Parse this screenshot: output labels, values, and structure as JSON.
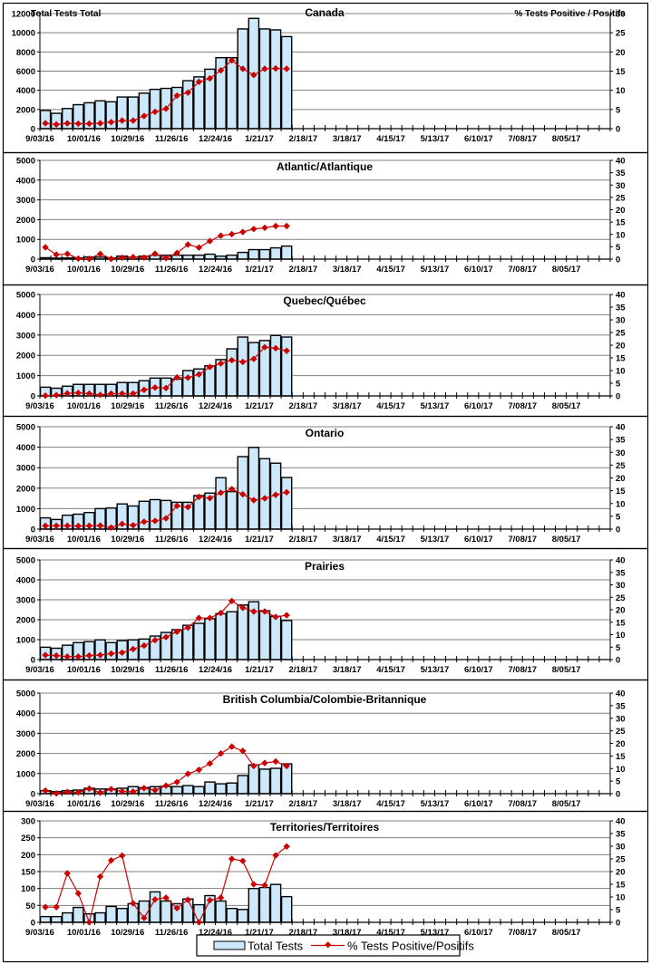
{
  "legend": {
    "bar_label": "Total Tests",
    "line_label": "% Tests Positive/Positifs"
  },
  "colors": {
    "bar_fill": "#cce8fa",
    "bar_stroke": "#000000",
    "line": "#cc0000",
    "grid": "#808080"
  },
  "chart_data": [
    {
      "type": "bar",
      "title": "Canada",
      "ylabel_left": "Total Tests Total",
      "ylabel_right": "% Tests Positive / Positifs",
      "xlabel": "",
      "weeks_total": 52,
      "x_tick_labels": [
        "9/03/16",
        "10/01/16",
        "10/29/16",
        "11/26/16",
        "12/24/16",
        "1/21/17",
        "2/18/17",
        "3/18/17",
        "4/15/17",
        "5/13/17",
        "6/10/17",
        "7/08/17",
        "8/05/17"
      ],
      "ylim_left": [
        0,
        12000
      ],
      "yticks_left": [
        0,
        2000,
        4000,
        6000,
        8000,
        10000,
        12000
      ],
      "ylim_right": [
        0,
        30
      ],
      "yticks_right": [
        0,
        5,
        10,
        15,
        20,
        25,
        30
      ],
      "grid": true,
      "series": [
        {
          "name": "Total Tests",
          "type": "bar",
          "values": [
            1900,
            1600,
            2100,
            2500,
            2700,
            2900,
            2800,
            3300,
            3300,
            3700,
            4100,
            4200,
            4300,
            5000,
            5400,
            6200,
            7400,
            7400,
            10400,
            11500,
            10400,
            10300,
            9600
          ]
        },
        {
          "name": "% Tests Positive/Positifs",
          "type": "line",
          "axis": "right",
          "values": [
            1.4,
            1.1,
            1.4,
            1.3,
            1.3,
            1.4,
            1.7,
            2.1,
            2.1,
            3.3,
            4.4,
            5.2,
            8.6,
            9.4,
            12.2,
            13.1,
            15.2,
            17.8,
            15.6,
            14.0,
            15.6,
            15.7,
            15.6
          ]
        }
      ]
    },
    {
      "type": "bar",
      "title": "Atlantic/Atlantique",
      "weeks_total": 52,
      "x_tick_labels": [
        "9/03/16",
        "10/01/16",
        "10/29/16",
        "11/26/16",
        "12/24/16",
        "1/21/17",
        "2/18/17",
        "3/18/17",
        "4/15/17",
        "5/13/17",
        "6/10/17",
        "7/08/17",
        "8/05/17"
      ],
      "ylim_left": [
        0,
        5000
      ],
      "yticks_left": [
        0,
        1000,
        2000,
        3000,
        4000,
        5000
      ],
      "ylim_right": [
        0,
        40
      ],
      "yticks_right": [
        0,
        5,
        10,
        15,
        20,
        25,
        30,
        35,
        40
      ],
      "grid": true,
      "series": [
        {
          "name": "Total Tests",
          "type": "bar",
          "values": [
            70,
            50,
            60,
            60,
            110,
            100,
            60,
            150,
            100,
            150,
            200,
            200,
            200,
            200,
            200,
            250,
            150,
            200,
            340,
            480,
            480,
            570,
            660
          ]
        },
        {
          "name": "% Tests Positive/Positifs",
          "type": "line",
          "axis": "right",
          "values": [
            4.8,
            1.8,
            2.1,
            0.2,
            0.1,
            2.1,
            0.1,
            0.6,
            0.8,
            0.6,
            2.2,
            0.4,
            2.5,
            5.9,
            4.7,
            7.3,
            9.5,
            10.1,
            11.0,
            12.2,
            12.7,
            13.4,
            13.4
          ]
        }
      ]
    },
    {
      "type": "bar",
      "title": "Quebec/Québec",
      "weeks_total": 52,
      "x_tick_labels": [
        "9/03/16",
        "10/01/16",
        "10/29/16",
        "11/26/16",
        "12/24/16",
        "1/21/17",
        "2/18/17",
        "3/18/17",
        "4/15/17",
        "5/13/17",
        "6/10/17",
        "7/08/17",
        "8/05/17"
      ],
      "ylim_left": [
        0,
        5000
      ],
      "yticks_left": [
        0,
        1000,
        2000,
        3000,
        4000,
        5000
      ],
      "ylim_right": [
        0,
        40
      ],
      "yticks_right": [
        0,
        5,
        10,
        15,
        20,
        25,
        30,
        35,
        40
      ],
      "grid": true,
      "series": [
        {
          "name": "Total Tests",
          "type": "bar",
          "values": [
            430,
            380,
            480,
            570,
            570,
            570,
            570,
            660,
            660,
            750,
            880,
            880,
            830,
            1250,
            1330,
            1480,
            1790,
            2320,
            2900,
            2630,
            2730,
            2980,
            2900
          ]
        },
        {
          "name": "% Tests Positive/Positifs",
          "type": "line",
          "axis": "right",
          "values": [
            0.1,
            0.3,
            1.0,
            1.2,
            0.9,
            0.4,
            0.9,
            0.9,
            0.9,
            2.4,
            3.3,
            3.1,
            7.3,
            7.2,
            8.5,
            11.4,
            12.8,
            14.1,
            13.4,
            14.6,
            19.2,
            18.8,
            17.8
          ]
        }
      ]
    },
    {
      "type": "bar",
      "title": "Ontario",
      "weeks_total": 52,
      "x_tick_labels": [
        "9/03/16",
        "10/01/16",
        "10/29/16",
        "11/26/16",
        "12/24/16",
        "1/21/17",
        "2/18/17",
        "3/18/17",
        "4/15/17",
        "5/13/17",
        "6/10/17",
        "7/08/17",
        "8/05/17"
      ],
      "ylim_left": [
        0,
        5000
      ],
      "yticks_left": [
        0,
        1000,
        2000,
        3000,
        4000,
        5000
      ],
      "ylim_right": [
        0,
        40
      ],
      "yticks_right": [
        0,
        5,
        10,
        15,
        20,
        25,
        30,
        35,
        40
      ],
      "grid": true,
      "series": [
        {
          "name": "Total Tests",
          "type": "bar",
          "values": [
            550,
            470,
            680,
            730,
            810,
            1000,
            1030,
            1230,
            1130,
            1360,
            1440,
            1400,
            1310,
            1310,
            1640,
            1760,
            2510,
            1830,
            3540,
            3990,
            3440,
            3220,
            2520
          ]
        },
        {
          "name": "% Tests Positive/Positifs",
          "type": "line",
          "axis": "right",
          "values": [
            1.3,
            1.3,
            1.3,
            1.2,
            1.3,
            1.4,
            0.6,
            2.0,
            1.5,
            2.9,
            3.2,
            4.2,
            9.1,
            8.6,
            12.6,
            12.1,
            14.2,
            15.6,
            13.6,
            11.3,
            12.0,
            13.4,
            14.4
          ]
        }
      ]
    },
    {
      "type": "bar",
      "title": "Prairies",
      "weeks_total": 52,
      "x_tick_labels": [
        "9/03/16",
        "10/01/16",
        "10/29/16",
        "11/26/16",
        "12/24/16",
        "1/21/17",
        "2/18/17",
        "3/18/17",
        "4/15/17",
        "5/13/17",
        "6/10/17",
        "7/08/17",
        "8/05/17"
      ],
      "ylim_left": [
        0,
        5000
      ],
      "yticks_left": [
        0,
        1000,
        2000,
        3000,
        4000,
        5000
      ],
      "ylim_right": [
        0,
        40
      ],
      "yticks_right": [
        0,
        5,
        10,
        15,
        20,
        25,
        30,
        35,
        40
      ],
      "grid": true,
      "series": [
        {
          "name": "Total Tests",
          "type": "bar",
          "values": [
            620,
            570,
            720,
            850,
            900,
            990,
            850,
            950,
            990,
            1030,
            1180,
            1360,
            1500,
            1720,
            1820,
            2050,
            2300,
            2400,
            2740,
            2900,
            2450,
            2170,
            1960
          ]
        },
        {
          "name": "% Tests Positive/Positifs",
          "type": "line",
          "axis": "right",
          "values": [
            1.8,
            1.6,
            1.2,
            1.2,
            1.6,
            1.8,
            2.4,
            2.8,
            4.2,
            5.6,
            7.8,
            9.0,
            11.2,
            12.8,
            16.7,
            16.7,
            18.7,
            23.5,
            20.8,
            19.3,
            19.3,
            17.1,
            17.8
          ]
        }
      ]
    },
    {
      "type": "bar",
      "title": "British Columbia/Colombie-Britannique",
      "weeks_total": 52,
      "x_tick_labels": [
        "9/03/16",
        "10/01/16",
        "10/29/16",
        "11/26/16",
        "12/24/16",
        "1/21/17",
        "2/18/17",
        "3/18/17",
        "4/15/17",
        "5/13/17",
        "6/10/17",
        "7/08/17",
        "8/05/17"
      ],
      "ylim_left": [
        0,
        5000
      ],
      "yticks_left": [
        0,
        1000,
        2000,
        3000,
        4000,
        5000
      ],
      "ylim_right": [
        0,
        40
      ],
      "yticks_right": [
        0,
        5,
        10,
        15,
        20,
        25,
        30,
        35,
        40
      ],
      "grid": true,
      "series": [
        {
          "name": "Total Tests",
          "type": "bar",
          "values": [
            150,
            100,
            150,
            180,
            270,
            230,
            230,
            270,
            350,
            300,
            350,
            360,
            350,
            400,
            350,
            580,
            490,
            530,
            900,
            1430,
            1220,
            1260,
            1480
          ]
        },
        {
          "name": "% Tests Positive/Positifs",
          "type": "line",
          "axis": "right",
          "values": [
            1.2,
            0.1,
            0.7,
            0.5,
            2.0,
            0.4,
            1.8,
            0.9,
            0.8,
            2.2,
            1.4,
            3.2,
            4.6,
            7.9,
            9.5,
            12.0,
            16.0,
            18.7,
            17.0,
            11.0,
            12.2,
            12.8,
            11.0
          ]
        }
      ]
    },
    {
      "type": "bar",
      "title": "Territories/Territoires",
      "weeks_total": 52,
      "x_tick_labels": [
        "9/03/16",
        "10/01/16",
        "10/29/16",
        "11/26/16",
        "12/24/16",
        "1/21/17",
        "2/18/17",
        "3/18/17",
        "4/15/17",
        "5/13/17",
        "6/10/17",
        "7/08/17",
        "8/05/17"
      ],
      "ylim_left": [
        0,
        300
      ],
      "yticks_left": [
        0,
        50,
        100,
        150,
        200,
        250,
        300
      ],
      "ylim_right": [
        0,
        40
      ],
      "yticks_right": [
        0,
        5,
        10,
        15,
        20,
        25,
        30,
        35,
        40
      ],
      "grid": true,
      "series": [
        {
          "name": "Total Tests",
          "type": "bar",
          "values": [
            17,
            17,
            28,
            44,
            25,
            28,
            47,
            41,
            55,
            63,
            90,
            63,
            55,
            69,
            52,
            79,
            63,
            41,
            38,
            100,
            103,
            112,
            76
          ]
        },
        {
          "name": "% Tests Positive/Positifs",
          "type": "line",
          "axis": "right",
          "values": [
            6.0,
            6.0,
            19.3,
            11.4,
            0.0,
            18.0,
            24.4,
            26.3,
            7.5,
            1.7,
            9.0,
            9.7,
            5.6,
            8.9,
            0.0,
            8.7,
            9.7,
            25.0,
            24.2,
            15.0,
            14.6,
            26.4,
            29.9
          ]
        }
      ]
    }
  ]
}
